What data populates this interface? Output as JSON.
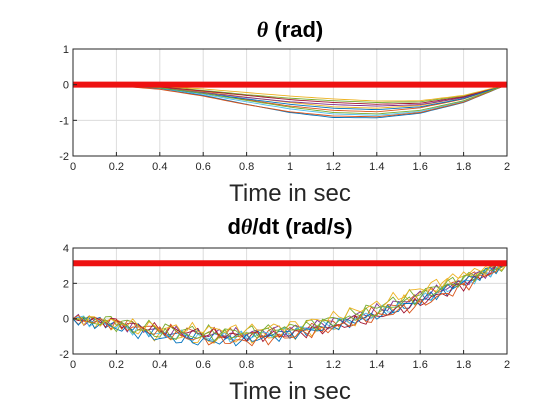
{
  "chart_data": [
    {
      "type": "line",
      "title_symbol": "θ",
      "title_rest": " (rad)",
      "xlabel": "Time in sec",
      "ylabel": "",
      "xlim": [
        0,
        2
      ],
      "ylim": [
        -2,
        1
      ],
      "xticks": [
        "0",
        "0.2",
        "0.4",
        "0.6",
        "0.8",
        "1",
        "1.2",
        "1.4",
        "1.6",
        "1.8",
        "2"
      ],
      "yticks": [
        "-2",
        "-1",
        "0",
        "1"
      ],
      "grid": true,
      "reference": {
        "y": 0,
        "color": "#ee1111"
      },
      "series": [
        {
          "color": "#0072bd",
          "points": [
            [
              0,
              0
            ],
            [
              0.2,
              -0.03
            ],
            [
              0.4,
              -0.12
            ],
            [
              0.6,
              -0.3
            ],
            [
              0.8,
              -0.55
            ],
            [
              1.0,
              -0.78
            ],
            [
              1.2,
              -0.92
            ],
            [
              1.4,
              -0.93
            ],
            [
              1.6,
              -0.8
            ],
            [
              1.8,
              -0.5
            ],
            [
              2,
              0
            ]
          ]
        },
        {
          "color": "#d95319",
          "points": [
            [
              0,
              0
            ],
            [
              0.2,
              -0.02
            ],
            [
              0.4,
              -0.1
            ],
            [
              0.6,
              -0.25
            ],
            [
              0.8,
              -0.42
            ],
            [
              1.0,
              -0.6
            ],
            [
              1.2,
              -0.72
            ],
            [
              1.4,
              -0.76
            ],
            [
              1.6,
              -0.65
            ],
            [
              1.8,
              -0.4
            ],
            [
              2,
              0
            ]
          ]
        },
        {
          "color": "#edb120",
          "points": [
            [
              0,
              0
            ],
            [
              0.2,
              -0.02
            ],
            [
              0.4,
              -0.08
            ],
            [
              0.6,
              -0.2
            ],
            [
              0.8,
              -0.35
            ],
            [
              1.0,
              -0.5
            ],
            [
              1.2,
              -0.62
            ],
            [
              1.4,
              -0.66
            ],
            [
              1.6,
              -0.58
            ],
            [
              1.8,
              -0.36
            ],
            [
              2,
              0
            ]
          ]
        },
        {
          "color": "#7e2f8e",
          "points": [
            [
              0,
              0
            ],
            [
              0.2,
              -0.02
            ],
            [
              0.4,
              -0.09
            ],
            [
              0.6,
              -0.22
            ],
            [
              0.8,
              -0.36
            ],
            [
              1.0,
              -0.48
            ],
            [
              1.2,
              -0.56
            ],
            [
              1.4,
              -0.6
            ],
            [
              1.6,
              -0.56
            ],
            [
              1.8,
              -0.36
            ],
            [
              2,
              0
            ]
          ]
        },
        {
          "color": "#77ac30",
          "points": [
            [
              0,
              0
            ],
            [
              0.2,
              -0.01
            ],
            [
              0.4,
              -0.06
            ],
            [
              0.6,
              -0.16
            ],
            [
              0.8,
              -0.28
            ],
            [
              1.0,
              -0.38
            ],
            [
              1.2,
              -0.45
            ],
            [
              1.4,
              -0.5
            ],
            [
              1.6,
              -0.48
            ],
            [
              1.8,
              -0.32
            ],
            [
              2,
              0
            ]
          ]
        },
        {
          "color": "#4dbeee",
          "points": [
            [
              0,
              0
            ],
            [
              0.2,
              -0.03
            ],
            [
              0.4,
              -0.11
            ],
            [
              0.6,
              -0.27
            ],
            [
              0.8,
              -0.48
            ],
            [
              1.0,
              -0.68
            ],
            [
              1.2,
              -0.82
            ],
            [
              1.4,
              -0.86
            ],
            [
              1.6,
              -0.75
            ],
            [
              1.8,
              -0.47
            ],
            [
              2,
              0
            ]
          ]
        },
        {
          "color": "#a2142f",
          "points": [
            [
              0,
              0
            ],
            [
              0.2,
              -0.02
            ],
            [
              0.4,
              -0.07
            ],
            [
              0.6,
              -0.18
            ],
            [
              0.8,
              -0.3
            ],
            [
              1.0,
              -0.42
            ],
            [
              1.2,
              -0.5
            ],
            [
              1.4,
              -0.55
            ],
            [
              1.6,
              -0.52
            ],
            [
              1.8,
              -0.34
            ],
            [
              2,
              0
            ]
          ]
        },
        {
          "color": "#0072bd",
          "points": [
            [
              0,
              0
            ],
            [
              0.2,
              -0.02
            ],
            [
              0.4,
              -0.1
            ],
            [
              0.6,
              -0.24
            ],
            [
              0.8,
              -0.4
            ],
            [
              1.0,
              -0.55
            ],
            [
              1.2,
              -0.66
            ],
            [
              1.4,
              -0.7
            ],
            [
              1.6,
              -0.62
            ],
            [
              1.8,
              -0.39
            ],
            [
              2,
              0
            ]
          ]
        },
        {
          "color": "#d95319",
          "points": [
            [
              0,
              0
            ],
            [
              0.2,
              -0.03
            ],
            [
              0.4,
              -0.13
            ],
            [
              0.6,
              -0.32
            ],
            [
              0.8,
              -0.56
            ],
            [
              1.0,
              -0.76
            ],
            [
              1.2,
              -0.88
            ],
            [
              1.4,
              -0.9
            ],
            [
              1.6,
              -0.78
            ],
            [
              1.8,
              -0.49
            ],
            [
              2,
              0
            ]
          ]
        },
        {
          "color": "#edb120",
          "points": [
            [
              0,
              0
            ],
            [
              0.2,
              -0.01
            ],
            [
              0.4,
              -0.05
            ],
            [
              0.6,
              -0.12
            ],
            [
              0.8,
              -0.22
            ],
            [
              1.0,
              -0.32
            ],
            [
              1.2,
              -0.4
            ],
            [
              1.4,
              -0.46
            ],
            [
              1.6,
              -0.45
            ],
            [
              1.8,
              -0.3
            ],
            [
              2,
              0
            ]
          ]
        },
        {
          "color": "#77ac30",
          "points": [
            [
              0,
              0
            ],
            [
              0.2,
              -0.02
            ],
            [
              0.4,
              -0.09
            ],
            [
              0.6,
              -0.24
            ],
            [
              0.8,
              -0.44
            ],
            [
              1.0,
              -0.63
            ],
            [
              1.2,
              -0.78
            ],
            [
              1.4,
              -0.82
            ],
            [
              1.6,
              -0.72
            ],
            [
              1.8,
              -0.45
            ],
            [
              2,
              0
            ]
          ]
        }
      ]
    },
    {
      "type": "line",
      "title_prefix": "d",
      "title_symbol": "θ",
      "title_rest": "/dt (rad/s)",
      "xlabel": "Time in sec",
      "ylabel": "",
      "xlim": [
        0,
        2
      ],
      "ylim": [
        -2,
        4
      ],
      "xticks": [
        "0",
        "0.2",
        "0.4",
        "0.6",
        "0.8",
        "1",
        "1.2",
        "1.4",
        "1.6",
        "1.8",
        "2"
      ],
      "yticks": [
        "-2",
        "0",
        "2",
        "4"
      ],
      "grid": true,
      "reference": {
        "y": 3.14,
        "color": "#ee1111"
      },
      "series": [
        {
          "color": "#0072bd",
          "points": [
            [
              0,
              0
            ],
            [
              0.2,
              -0.3
            ],
            [
              0.4,
              -0.8
            ],
            [
              0.6,
              -1.0
            ],
            [
              0.8,
              -1.0
            ],
            [
              1.0,
              -0.8
            ],
            [
              1.2,
              -0.4
            ],
            [
              1.4,
              0.2
            ],
            [
              1.6,
              1.0
            ],
            [
              1.8,
              2.0
            ],
            [
              2,
              3.1
            ]
          ]
        },
        {
          "color": "#d95319",
          "points": [
            [
              0,
              0
            ],
            [
              0.2,
              -0.2
            ],
            [
              0.4,
              -0.6
            ],
            [
              0.6,
              -0.8
            ],
            [
              0.8,
              -0.9
            ],
            [
              1.0,
              -0.7
            ],
            [
              1.2,
              -0.3
            ],
            [
              1.4,
              0.4
            ],
            [
              1.6,
              1.2
            ],
            [
              1.8,
              2.2
            ],
            [
              2,
              3.1
            ]
          ]
        },
        {
          "color": "#edb120",
          "points": [
            [
              0,
              0
            ],
            [
              0.2,
              -0.4
            ],
            [
              0.4,
              -1.0
            ],
            [
              0.6,
              -1.2
            ],
            [
              0.8,
              -1.1
            ],
            [
              1.0,
              -0.9
            ],
            [
              1.2,
              -0.5
            ],
            [
              1.4,
              0.3
            ],
            [
              1.6,
              1.4
            ],
            [
              1.8,
              2.4
            ],
            [
              2,
              3.1
            ]
          ]
        },
        {
          "color": "#7e2f8e",
          "points": [
            [
              0,
              0
            ],
            [
              0.2,
              -0.3
            ],
            [
              0.4,
              -0.7
            ],
            [
              0.6,
              -0.9
            ],
            [
              0.8,
              -0.8
            ],
            [
              1.0,
              -0.6
            ],
            [
              1.2,
              -0.2
            ],
            [
              1.4,
              0.5
            ],
            [
              1.6,
              1.3
            ],
            [
              1.8,
              2.1
            ],
            [
              2,
              3.1
            ]
          ]
        },
        {
          "color": "#77ac30",
          "points": [
            [
              0,
              0
            ],
            [
              0.2,
              -0.1
            ],
            [
              0.4,
              -0.5
            ],
            [
              0.6,
              -0.7
            ],
            [
              0.8,
              -0.7
            ],
            [
              1.0,
              -0.5
            ],
            [
              1.2,
              0.0
            ],
            [
              1.4,
              0.7
            ],
            [
              1.6,
              1.5
            ],
            [
              1.8,
              2.3
            ],
            [
              2,
              3.1
            ]
          ]
        },
        {
          "color": "#4dbeee",
          "points": [
            [
              0,
              0
            ],
            [
              0.2,
              -0.4
            ],
            [
              0.4,
              -0.9
            ],
            [
              0.6,
              -1.1
            ],
            [
              0.8,
              -1.0
            ],
            [
              1.0,
              -0.7
            ],
            [
              1.2,
              -0.3
            ],
            [
              1.4,
              0.3
            ],
            [
              1.6,
              1.1
            ],
            [
              1.8,
              2.0
            ],
            [
              2,
              3.1
            ]
          ]
        },
        {
          "color": "#a2142f",
          "points": [
            [
              0,
              0
            ],
            [
              0.2,
              -0.2
            ],
            [
              0.4,
              -0.6
            ],
            [
              0.6,
              -0.8
            ],
            [
              0.8,
              -1.0
            ],
            [
              1.0,
              -0.9
            ],
            [
              1.2,
              -0.5
            ],
            [
              1.4,
              0.1
            ],
            [
              1.6,
              0.9
            ],
            [
              1.8,
              1.9
            ],
            [
              2,
              3.1
            ]
          ]
        },
        {
          "color": "#0072bd",
          "points": [
            [
              0,
              0
            ],
            [
              0.2,
              -0.5
            ],
            [
              0.4,
              -1.1
            ],
            [
              0.6,
              -1.3
            ],
            [
              0.8,
              -1.2
            ],
            [
              1.0,
              -0.9
            ],
            [
              1.2,
              -0.4
            ],
            [
              1.4,
              0.2
            ],
            [
              1.6,
              1.0
            ],
            [
              1.8,
              2.1
            ],
            [
              2,
              3.1
            ]
          ]
        },
        {
          "color": "#d95319",
          "points": [
            [
              0,
              0
            ],
            [
              0.2,
              -0.3
            ],
            [
              0.4,
              -0.8
            ],
            [
              0.6,
              -1.2
            ],
            [
              0.8,
              -1.3
            ],
            [
              1.0,
              -1.0
            ],
            [
              1.2,
              -0.5
            ],
            [
              1.4,
              0.1
            ],
            [
              1.6,
              0.8
            ],
            [
              1.8,
              1.8
            ],
            [
              2,
              3.1
            ]
          ]
        },
        {
          "color": "#edb120",
          "points": [
            [
              0,
              0
            ],
            [
              0.2,
              -0.2
            ],
            [
              0.4,
              -0.5
            ],
            [
              0.6,
              -0.6
            ],
            [
              0.8,
              -0.6
            ],
            [
              1.0,
              -0.4
            ],
            [
              1.2,
              0.1
            ],
            [
              1.4,
              0.8
            ],
            [
              1.6,
              1.7
            ],
            [
              1.8,
              2.5
            ],
            [
              2,
              3.1
            ]
          ]
        },
        {
          "color": "#77ac30",
          "points": [
            [
              0,
              0
            ],
            [
              0.2,
              -0.4
            ],
            [
              0.4,
              -0.9
            ],
            [
              0.6,
              -1.0
            ],
            [
              0.8,
              -0.9
            ],
            [
              1.0,
              -0.6
            ],
            [
              1.2,
              -0.2
            ],
            [
              1.4,
              0.4
            ],
            [
              1.6,
              1.2
            ],
            [
              1.8,
              2.2
            ],
            [
              2,
              3.1
            ]
          ]
        }
      ]
    }
  ]
}
